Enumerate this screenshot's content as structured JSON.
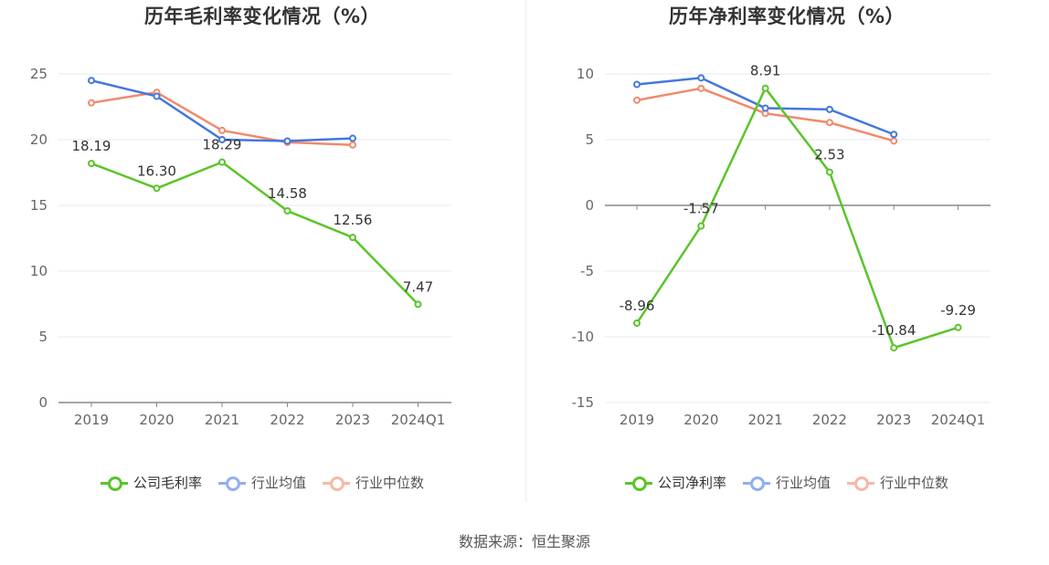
{
  "colors": {
    "company": "#5bc42a",
    "industry_avg": "#4477dd",
    "industry_median": "#f2896a",
    "axis": "#666666",
    "grid": "#e6e9f2"
  },
  "source": "数据来源：恒生聚源",
  "chart_data": [
    {
      "type": "line",
      "title": "历年毛利率变化情况（%）",
      "categories": [
        "2019",
        "2020",
        "2021",
        "2022",
        "2023",
        "2024Q1"
      ],
      "ylim": [
        0,
        25
      ],
      "yticks": [
        0,
        5,
        10,
        15,
        20,
        25
      ],
      "grid": true,
      "legend_position": "bottom",
      "series": [
        {
          "name": "公司毛利率",
          "values": [
            18.19,
            16.3,
            18.29,
            14.58,
            12.56,
            7.47
          ],
          "labels": [
            "18.19",
            "16.30",
            "18.29",
            "14.58",
            "12.56",
            "7.47"
          ]
        },
        {
          "name": "行业均值",
          "values": [
            24.5,
            23.3,
            20.0,
            19.9,
            20.1,
            null
          ]
        },
        {
          "name": "行业中位数",
          "values": [
            22.8,
            23.6,
            20.7,
            19.8,
            19.6,
            null
          ]
        }
      ]
    },
    {
      "type": "line",
      "title": "历年净利率变化情况（%）",
      "categories": [
        "2019",
        "2020",
        "2021",
        "2022",
        "2023",
        "2024Q1"
      ],
      "ylim": [
        -15,
        10
      ],
      "yticks": [
        -15,
        -10,
        -5,
        0,
        5,
        10
      ],
      "grid": true,
      "legend_position": "bottom",
      "series": [
        {
          "name": "公司净利率",
          "values": [
            -8.96,
            -1.57,
            8.91,
            2.53,
            -10.84,
            -9.29
          ],
          "labels": [
            "-8.96",
            "-1.57",
            "8.91",
            "2.53",
            "-10.84",
            "-9.29"
          ]
        },
        {
          "name": "行业均值",
          "values": [
            9.2,
            9.7,
            7.4,
            7.3,
            5.4,
            null
          ]
        },
        {
          "name": "行业中位数",
          "values": [
            8.0,
            8.9,
            7.0,
            6.3,
            4.9,
            null
          ]
        }
      ]
    }
  ]
}
